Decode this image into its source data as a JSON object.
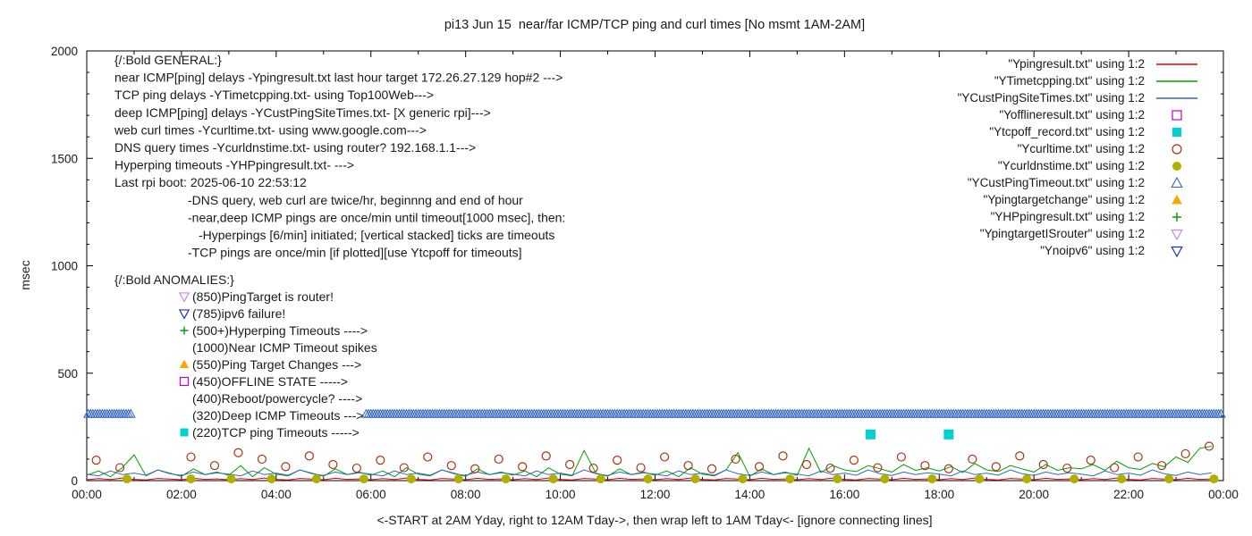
{
  "title": "pi13 Jun 15  near/far ICMP/TCP ping and curl times [No msmt 1AM-2AM]",
  "ylabel": "msec",
  "x_caption": "<-START at 2AM Yday, right to 12AM Tday->, then wrap left to 1AM Tday<- [ignore connecting lines]",
  "axes": {
    "ylim": [
      0,
      2000
    ],
    "y_ticks": [
      0,
      500,
      1000,
      1500,
      2000
    ],
    "y_minor_step": 100,
    "xlim_hours": [
      0,
      24
    ],
    "x_tick_hours": [
      0,
      2,
      4,
      6,
      8,
      10,
      12,
      14,
      16,
      18,
      20,
      22,
      24
    ],
    "x_tick_labels": [
      "00:00",
      "02:00",
      "04:00",
      "06:00",
      "08:00",
      "10:00",
      "12:00",
      "14:00",
      "16:00",
      "18:00",
      "20:00",
      "22:00",
      "00:00"
    ],
    "grid": false
  },
  "legend": [
    {
      "label": "\"Ypingresult.txt\" using 1:2",
      "style": "line",
      "color": "#dd0000"
    },
    {
      "label": "\"YTimetcpping.txt\" using 1:2",
      "style": "line",
      "color": "#00a000"
    },
    {
      "label": "\"YCustPingSiteTimes.txt\" using 1:2",
      "style": "line",
      "color": "#3465c8"
    },
    {
      "label": "\"Yofflineresult.txt\" using 1:2",
      "style": "square-open",
      "color": "#c000c0"
    },
    {
      "label": "\"Ytcpoff_record.txt\" using 1:2",
      "style": "square-filled",
      "color": "#00d0d0"
    },
    {
      "label": "\"Ycurltime.txt\" using 1:2",
      "style": "circle-open",
      "color": "#aa3311"
    },
    {
      "label": "\"Ycurldnstime.txt\" using 1:2",
      "style": "circle-filled",
      "color": "#b0b000"
    },
    {
      "label": "\"YCustPingTimeout.txt\" using 1:2",
      "style": "triangle-up-open",
      "color": "#3465c8"
    },
    {
      "label": "\"Ypingtargetchange\" using 1:2",
      "style": "triangle-up-filled",
      "color": "#ffa500"
    },
    {
      "label": "\"YHPpingresult.txt\" using 1:2",
      "style": "plus",
      "color": "#00a000"
    },
    {
      "label": "\"YpingtargetISrouter\" using 1:2",
      "style": "triangle-down-open",
      "color": "#cc88ee"
    },
    {
      "label": "\"Ynoipv6\" using 1:2",
      "style": "triangle-down-open",
      "color": "#2030b0"
    }
  ],
  "annotations": {
    "general": {
      "header": "{/:Bold GENERAL:}",
      "lines": [
        {
          "indent": 0,
          "text": "near ICMP[ping] delays -Ypingresult.txt last hour target 172.26.27.129 hop#2 --->"
        },
        {
          "indent": 0,
          "text": "TCP ping delays -YTimetcpping.txt- using Top100Web--->"
        },
        {
          "indent": 0,
          "text": "deep ICMP[ping] delays -YCustPingSiteTimes.txt- [X generic rpi]--->"
        },
        {
          "indent": 0,
          "text": "web curl times -Ycurltime.txt- using www.google.com--->"
        },
        {
          "indent": 0,
          "text": "DNS query times -Ycurldnstime.txt- using router? 192.168.1.1--->"
        },
        {
          "indent": 0,
          "text": "Hyperping timeouts -YHPpingresult.txt- --->"
        },
        {
          "indent": 0,
          "text": "Last rpi boot: 2025-06-10 22:53:12"
        },
        {
          "indent": 1,
          "text": "-DNS query, web curl are twice/hr, beginnng and end of hour"
        },
        {
          "indent": 1,
          "text": "-near,deep ICMP pings are once/min until timeout[1000 msec], then:"
        },
        {
          "indent": 2,
          "text": "-Hyperpings [6/min] initiated; [vertical stacked] ticks are timeouts"
        },
        {
          "indent": 1,
          "text": "-TCP pings are once/min [if plotted][use Ytcpoff for timeouts]"
        }
      ]
    },
    "anomalies": {
      "header": "{/:Bold ANOMALIES:}",
      "items": [
        {
          "marker": "triangle-down-open",
          "color": "#cc88ee",
          "text": "(850)PingTarget is router!"
        },
        {
          "marker": "triangle-down-open",
          "color": "#2030b0",
          "text": "(785)ipv6 failure!"
        },
        {
          "marker": "plus",
          "color": "#00a000",
          "text": "(500+)Hyperping Timeouts ---->"
        },
        {
          "marker": "none",
          "color": "",
          "text": "(1000)Near ICMP Timeout spikes"
        },
        {
          "marker": "triangle-up-filled",
          "color": "#ffa500",
          "text": "(550)Ping Target Changes --->"
        },
        {
          "marker": "square-open",
          "color": "#c000c0",
          "text": "(450)OFFLINE STATE ----->"
        },
        {
          "marker": "none",
          "color": "",
          "text": "(400)Reboot/powercycle? ---->"
        },
        {
          "marker": "none",
          "color": "",
          "text": "(320)Deep ICMP Timeouts --->"
        },
        {
          "marker": "square-filled",
          "color": "#00d0d0",
          "text": "(220)TCP ping Timeouts ----->"
        }
      ]
    }
  },
  "chart_data": {
    "type": "line",
    "x_unit": "hours_0_to_24",
    "ylim": [
      0,
      2000
    ],
    "series": [
      {
        "name": "Ypingresult.txt",
        "style": "line",
        "color": "#dd0000",
        "x_start": 0,
        "x_step": 0.25,
        "values": [
          4,
          9,
          5,
          12,
          6,
          3,
          10,
          7,
          4,
          11,
          6,
          8,
          4,
          9,
          5,
          12,
          6,
          3,
          10,
          7,
          4,
          11,
          6,
          8,
          4,
          9,
          5,
          12,
          6,
          3,
          10,
          7,
          4,
          11,
          6,
          8,
          4,
          9,
          5,
          12,
          6,
          3,
          10,
          7,
          4,
          11,
          6,
          8,
          4,
          9,
          5,
          12,
          6,
          3,
          10,
          7,
          4,
          11,
          6,
          8,
          4,
          9,
          5,
          12,
          6,
          3,
          10,
          7,
          4,
          11,
          6,
          8,
          4,
          9,
          5,
          12,
          6,
          3,
          10,
          7,
          4,
          11,
          6,
          8,
          4,
          9,
          5,
          12,
          6,
          3,
          10,
          7,
          4,
          11,
          6,
          8
        ]
      },
      {
        "name": "YTimetcpping.txt",
        "style": "line",
        "color": "#00a000",
        "x_start": 0,
        "x_step": 0.25,
        "values": [
          25,
          45,
          18,
          60,
          120,
          22,
          50,
          35,
          20,
          55,
          28,
          40,
          25,
          70,
          18,
          60,
          30,
          22,
          50,
          35,
          20,
          55,
          28,
          40,
          25,
          45,
          18,
          60,
          30,
          22,
          50,
          35,
          20,
          55,
          28,
          40,
          25,
          45,
          18,
          60,
          30,
          22,
          140,
          35,
          20,
          55,
          28,
          40,
          25,
          45,
          18,
          60,
          30,
          22,
          50,
          130,
          20,
          55,
          28,
          40,
          25,
          150,
          38,
          70,
          50,
          42,
          70,
          55,
          40,
          75,
          48,
          60,
          45,
          65,
          38,
          80,
          50,
          42,
          70,
          55,
          40,
          75,
          48,
          60,
          55,
          75,
          48,
          90,
          60,
          52,
          80,
          65,
          110,
          85,
          150,
          160
        ]
      },
      {
        "name": "YCustPingSiteTimes.txt",
        "style": "line",
        "color": "#3465c8",
        "x_start": 0,
        "x_step": 0.25,
        "values": [
          30,
          22,
          45,
          28,
          35,
          25,
          50,
          32,
          24,
          40,
          28,
          36,
          30,
          22,
          45,
          28,
          35,
          25,
          50,
          32,
          24,
          40,
          28,
          36,
          30,
          22,
          45,
          28,
          35,
          25,
          50,
          32,
          24,
          40,
          28,
          36,
          30,
          22,
          45,
          28,
          35,
          25,
          50,
          32,
          24,
          40,
          28,
          36,
          30,
          22,
          45,
          28,
          35,
          25,
          50,
          32,
          24,
          40,
          28,
          36,
          30,
          22,
          45,
          28,
          35,
          25,
          50,
          32,
          24,
          40,
          28,
          36,
          30,
          22,
          45,
          28,
          35,
          25,
          50,
          32,
          24,
          40,
          28,
          36,
          30,
          22,
          45,
          28,
          35,
          25,
          50,
          32,
          24,
          40,
          28,
          36
        ]
      },
      {
        "name": "Yofflineresult.txt",
        "style": "square-open",
        "color": "#c000c0",
        "points": []
      },
      {
        "name": "Ytcpoff_record.txt",
        "style": "square-filled",
        "color": "#00d0d0",
        "points": [
          [
            16.55,
            215
          ],
          [
            18.2,
            215
          ]
        ]
      },
      {
        "name": "Ycurltime.txt",
        "style": "circle-open",
        "color": "#aa3311",
        "points": [
          [
            0.2,
            95
          ],
          [
            0.7,
            60
          ],
          [
            2.2,
            110
          ],
          [
            2.7,
            70
          ],
          [
            3.2,
            130
          ],
          [
            3.7,
            100
          ],
          [
            4.2,
            65
          ],
          [
            4.7,
            115
          ],
          [
            5.2,
            75
          ],
          [
            5.7,
            58
          ],
          [
            6.2,
            95
          ],
          [
            6.7,
            60
          ],
          [
            7.2,
            110
          ],
          [
            7.7,
            70
          ],
          [
            8.2,
            55
          ],
          [
            8.7,
            100
          ],
          [
            9.2,
            65
          ],
          [
            9.7,
            115
          ],
          [
            10.2,
            75
          ],
          [
            10.7,
            58
          ],
          [
            11.2,
            95
          ],
          [
            11.7,
            60
          ],
          [
            12.2,
            110
          ],
          [
            12.7,
            70
          ],
          [
            13.2,
            55
          ],
          [
            13.7,
            100
          ],
          [
            14.2,
            65
          ],
          [
            14.7,
            115
          ],
          [
            15.2,
            75
          ],
          [
            15.7,
            58
          ],
          [
            16.2,
            95
          ],
          [
            16.7,
            60
          ],
          [
            17.2,
            110
          ],
          [
            17.7,
            70
          ],
          [
            18.2,
            55
          ],
          [
            18.7,
            100
          ],
          [
            19.2,
            65
          ],
          [
            19.7,
            115
          ],
          [
            20.2,
            75
          ],
          [
            20.7,
            58
          ],
          [
            21.2,
            95
          ],
          [
            21.7,
            60
          ],
          [
            22.2,
            110
          ],
          [
            22.7,
            70
          ],
          [
            23.2,
            125
          ],
          [
            23.7,
            160
          ]
        ]
      },
      {
        "name": "Ycurldnstime.txt",
        "style": "circle-filled",
        "color": "#b0b000",
        "points": [
          [
            0.85,
            8
          ],
          [
            2.2,
            8
          ],
          [
            3.05,
            8
          ],
          [
            3.9,
            8
          ],
          [
            4.85,
            8
          ],
          [
            5.85,
            8
          ],
          [
            6.85,
            8
          ],
          [
            7.85,
            8
          ],
          [
            8.85,
            8
          ],
          [
            9.85,
            8
          ],
          [
            10.85,
            8
          ],
          [
            11.85,
            8
          ],
          [
            12.85,
            8
          ],
          [
            13.85,
            8
          ],
          [
            14.85,
            8
          ],
          [
            15.85,
            8
          ],
          [
            16.85,
            8
          ],
          [
            17.85,
            8
          ],
          [
            18.85,
            8
          ],
          [
            19.85,
            8
          ],
          [
            20.85,
            8
          ],
          [
            21.85,
            8
          ],
          [
            22.85,
            8
          ],
          [
            23.8,
            8
          ]
        ]
      },
      {
        "name": "YCustPingTimeout.txt",
        "style": "triangle-up-open",
        "color": "#3465c8",
        "segments": [
          {
            "x_start": 0.03,
            "x_end": 0.95,
            "step": 0.05,
            "y": 310
          },
          {
            "x_start": 5.9,
            "x_end": 23.97,
            "step": 0.05,
            "y": 310
          }
        ]
      },
      {
        "name": "Ypingtargetchange",
        "style": "triangle-up-filled",
        "color": "#ffa500",
        "points": []
      },
      {
        "name": "YHPpingresult.txt",
        "style": "plus",
        "color": "#00a000",
        "points": []
      },
      {
        "name": "YpingtargetISrouter",
        "style": "triangle-down-open",
        "color": "#cc88ee",
        "points": []
      },
      {
        "name": "Ynoipv6",
        "style": "triangle-down-open",
        "color": "#2030b0",
        "points": []
      }
    ]
  }
}
